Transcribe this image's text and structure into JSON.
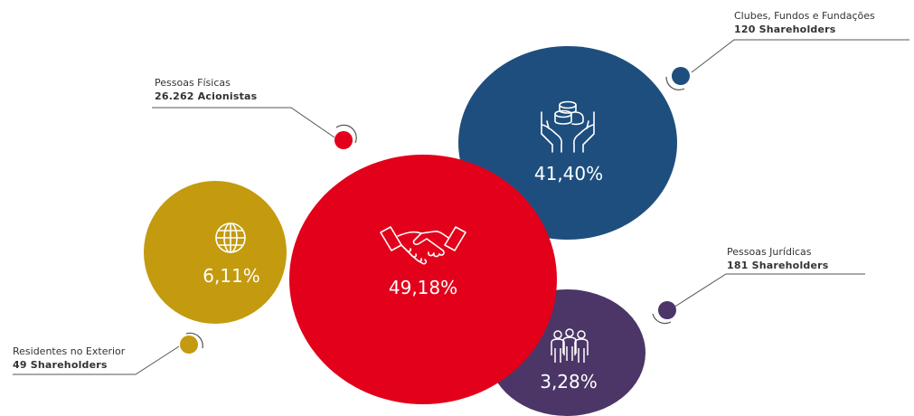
{
  "chart_data": {
    "type": "bubble",
    "series": [
      {
        "key": "pf",
        "category": "Pessoas Físicas",
        "count": "26.262 Acionistas",
        "value": 49.18,
        "value_label": "49,18%",
        "color": "#E2001A",
        "icon": "handshake-icon"
      },
      {
        "key": "cf",
        "category": "Clubes, Fundos e Fundações",
        "count": "120 Shareholders",
        "value": 41.4,
        "value_label": "41,40%",
        "color": "#1E4E7E",
        "icon": "hands-coins-icon"
      },
      {
        "key": "re",
        "category": "Residentes no Exterior",
        "count": "49 Shareholders",
        "value": 6.11,
        "value_label": "6,11%",
        "color": "#C49A0F",
        "icon": "globe-icon"
      },
      {
        "key": "pj",
        "category": "Pessoas Jurídicas",
        "count": "181 Shareholders",
        "value": 3.28,
        "value_label": "3,28%",
        "color": "#4B3667",
        "icon": "people-group-icon"
      }
    ]
  }
}
